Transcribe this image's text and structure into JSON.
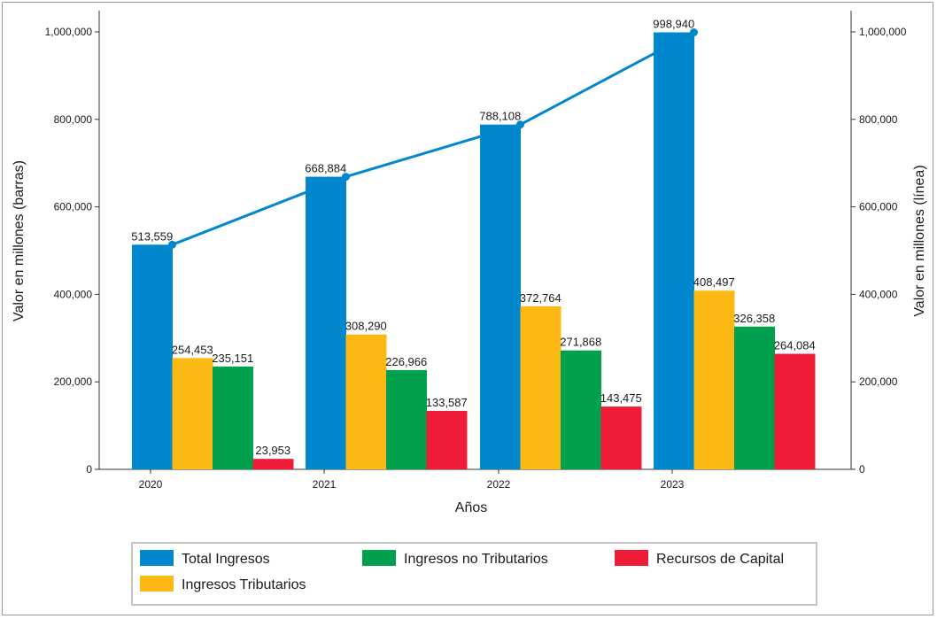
{
  "chart_data": {
    "type": "bar",
    "categories": [
      "2020",
      "2021",
      "2022",
      "2023"
    ],
    "xlabel": "Años",
    "ylabel": "Valor en millones (barras)",
    "ylabel_right": "Valor en millones (línea)",
    "ylim": [
      0,
      1000000
    ],
    "y_ticks": [
      "0",
      "200,000",
      "400,000",
      "600,000",
      "800,000",
      "1,000,000"
    ],
    "grid": false,
    "legend_position": "bottom",
    "series": [
      {
        "name": "Total Ingresos",
        "values": [
          513559,
          668884,
          788108,
          998940
        ],
        "labels": [
          "513,559",
          "668,884",
          "788,108",
          "998,940"
        ],
        "color": "#0087cd"
      },
      {
        "name": "Ingresos Tributarios",
        "values": [
          254453,
          308290,
          372764,
          408497
        ],
        "labels": [
          "254,453",
          "308,290",
          "372,764",
          "408,497"
        ],
        "color": "#fdb913"
      },
      {
        "name": "Ingresos no Tributarios",
        "values": [
          235151,
          226966,
          271868,
          326358
        ],
        "labels": [
          "235,151",
          "226,966",
          "271,868",
          "326,358"
        ],
        "color": "#00a04f"
      },
      {
        "name": "Recursos de Capital",
        "values": [
          23953,
          133587,
          143475,
          264084
        ],
        "labels": [
          "23,953",
          "133,587",
          "143,475",
          "264,084"
        ],
        "color": "#ee1c37"
      }
    ],
    "line_series": {
      "values": [
        513559,
        668884,
        788108,
        998940
      ],
      "color": "#0087cd",
      "axis": "right",
      "markers": true
    },
    "legend_order": [
      "Total Ingresos",
      "Ingresos no Tributarios",
      "Recursos de Capital",
      "Ingresos Tributarios"
    ]
  }
}
